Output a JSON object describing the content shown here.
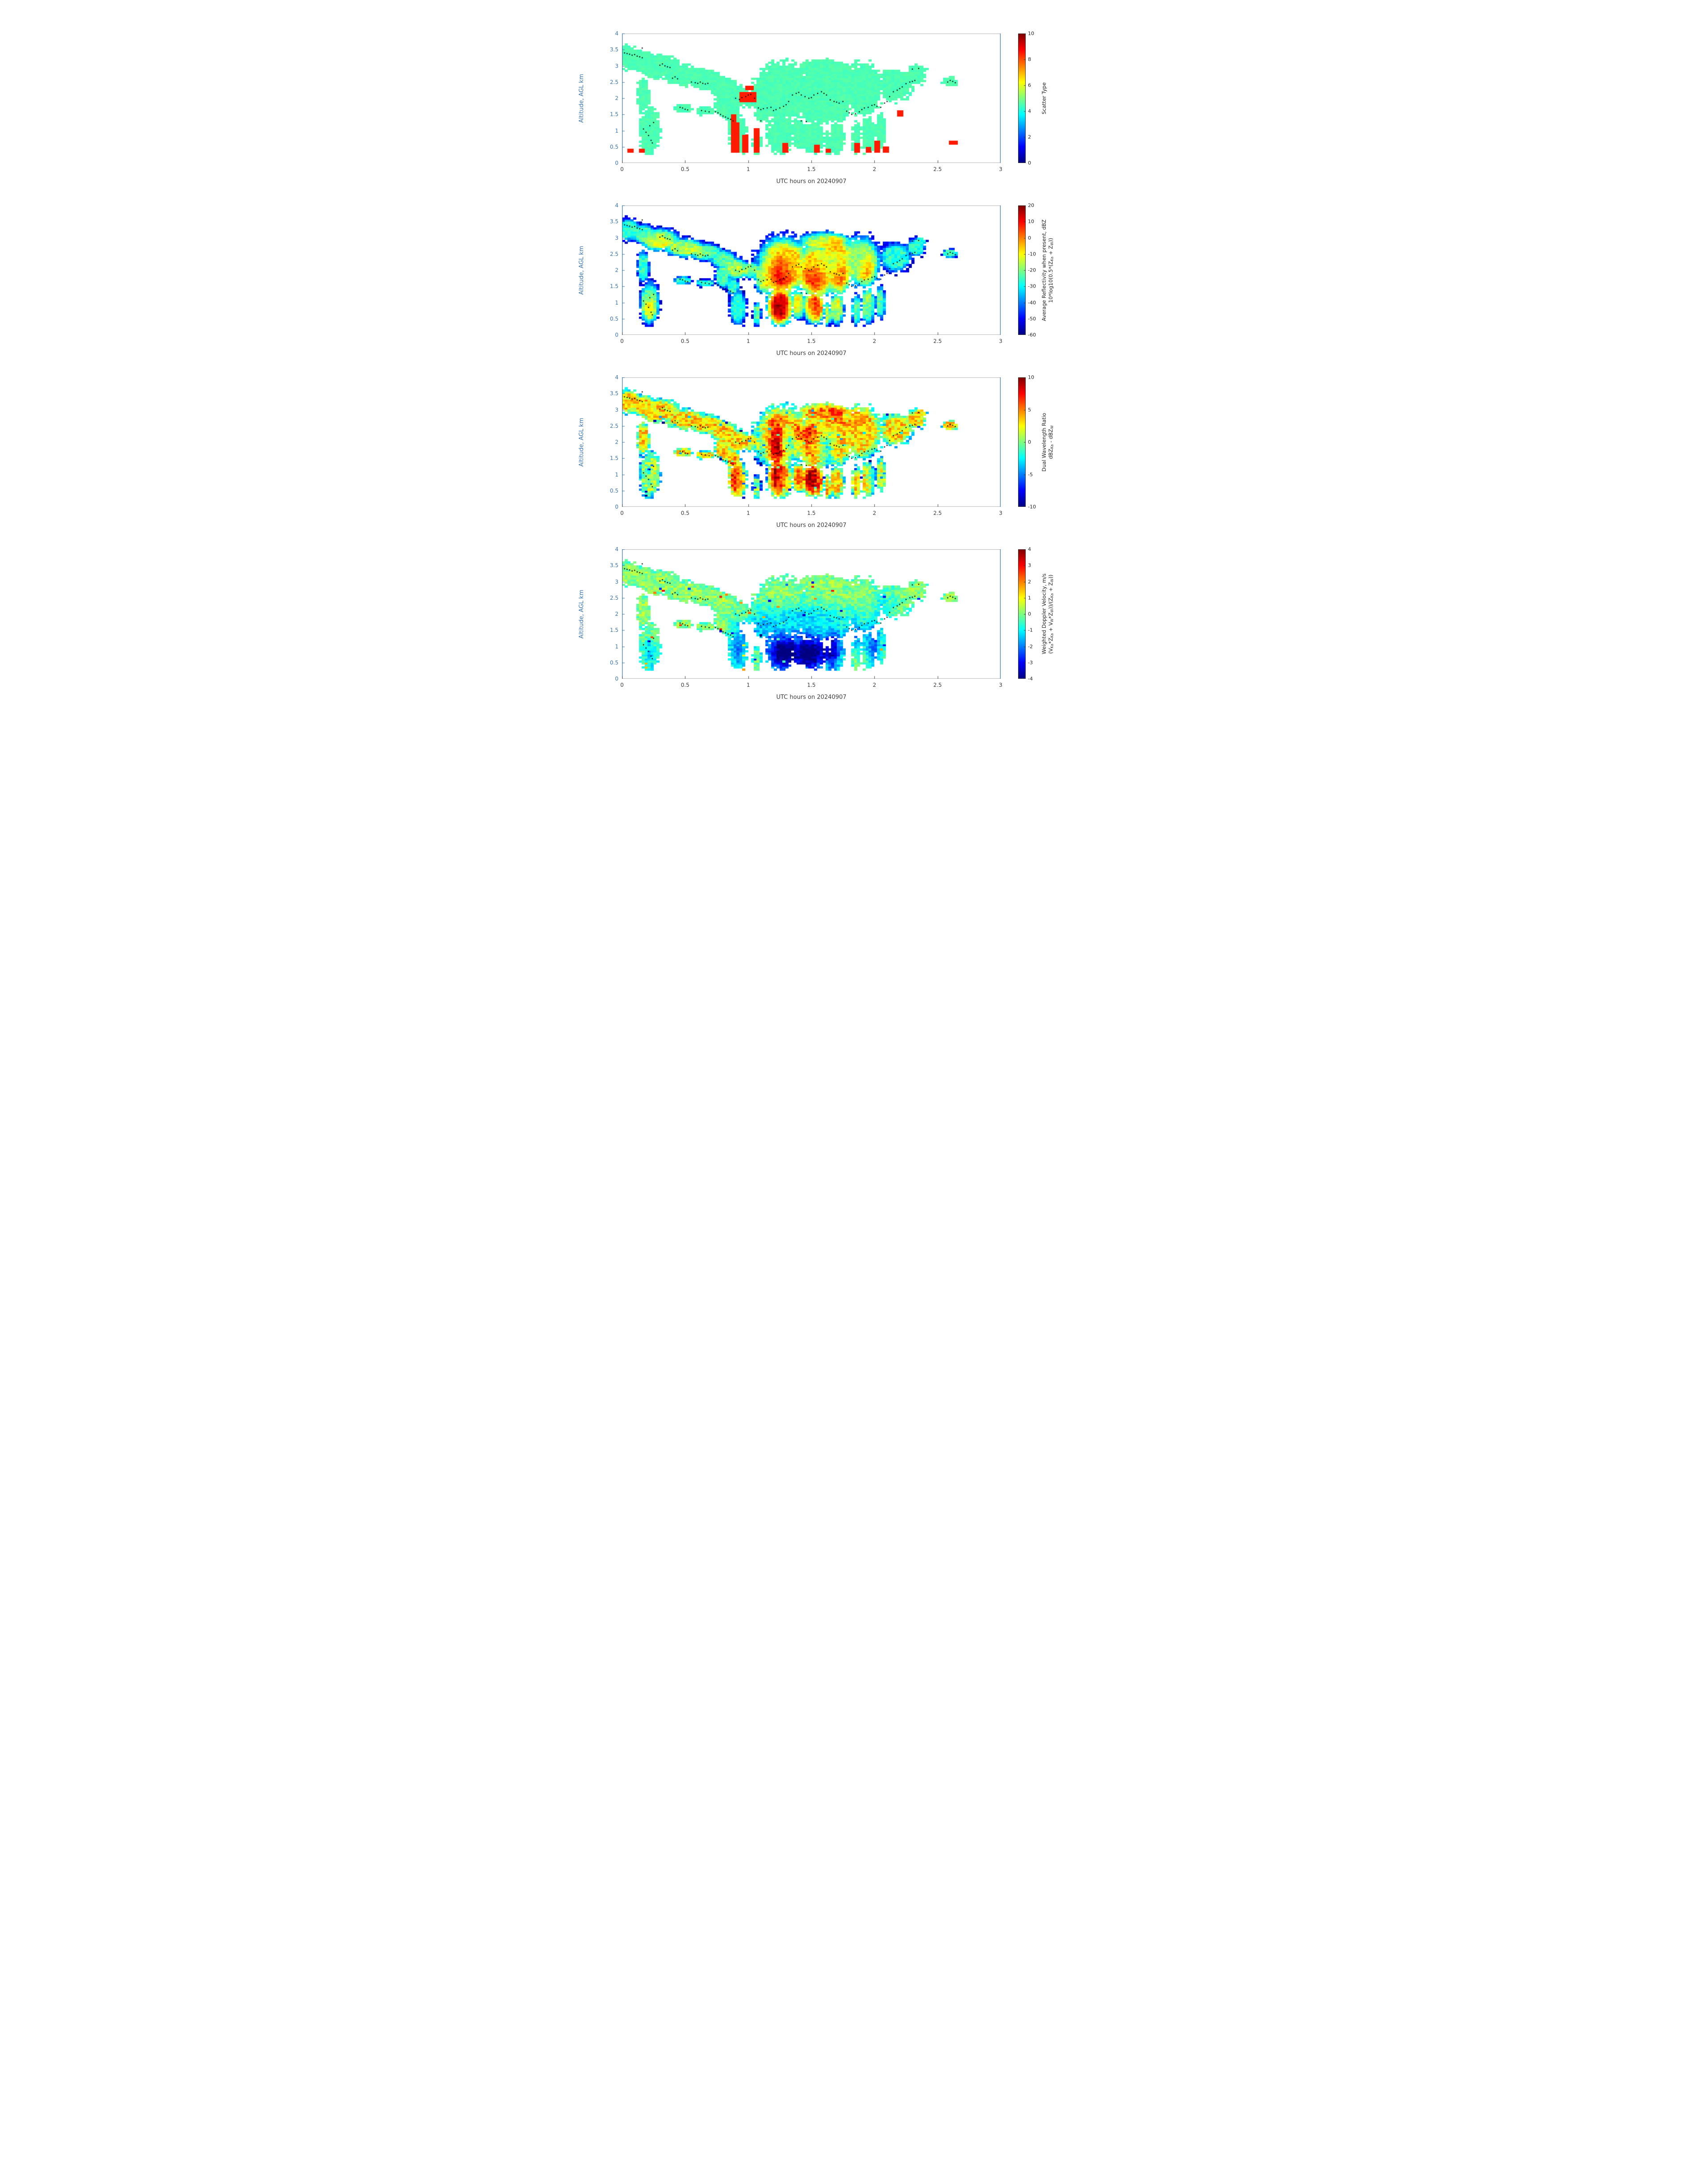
{
  "figure": {
    "xlabel": "UTC hours on 20240907",
    "ylabel": "Altitude, AGL km"
  },
  "grid": {
    "nx": 132,
    "ny": 64,
    "xmin": 0,
    "xmax": 3,
    "ymin": 0,
    "ymax": 4,
    "cloud_base_km": 0.28
  },
  "mask_blobs_format": "cx_hours, cy_km, rx_hours, ry_km",
  "mask_blobs": [
    [
      0.05,
      3.25,
      0.11,
      0.38
    ],
    [
      0.17,
      3.12,
      0.12,
      0.32
    ],
    [
      0.3,
      2.95,
      0.18,
      0.38
    ],
    [
      0.5,
      2.7,
      0.18,
      0.32
    ],
    [
      0.67,
      2.55,
      0.15,
      0.3
    ],
    [
      0.8,
      2.35,
      0.12,
      0.32
    ],
    [
      0.9,
      2.05,
      0.1,
      0.38
    ],
    [
      1.02,
      2.0,
      0.1,
      0.28
    ],
    [
      0.17,
      2.1,
      0.055,
      0.55
    ],
    [
      0.22,
      1.0,
      0.085,
      0.75
    ],
    [
      0.48,
      1.68,
      0.085,
      0.14
    ],
    [
      0.66,
      1.6,
      0.085,
      0.13
    ],
    [
      0.8,
      1.8,
      0.07,
      0.4
    ],
    [
      0.88,
      1.5,
      0.06,
      0.3
    ],
    [
      0.92,
      0.85,
      0.075,
      0.6
    ],
    [
      1.07,
      0.65,
      0.035,
      0.4
    ],
    [
      1.12,
      1.8,
      0.08,
      0.55
    ],
    [
      1.27,
      2.2,
      0.23,
      0.95
    ],
    [
      1.25,
      0.85,
      0.11,
      0.6
    ],
    [
      1.4,
      0.9,
      0.06,
      0.45
    ],
    [
      1.55,
      2.0,
      0.18,
      0.85
    ],
    [
      1.52,
      0.8,
      0.09,
      0.55
    ],
    [
      1.6,
      2.9,
      0.22,
      0.3
    ],
    [
      1.63,
      0.6,
      0.03,
      0.35
    ],
    [
      1.7,
      2.2,
      0.15,
      1.0
    ],
    [
      1.7,
      0.75,
      0.06,
      0.5
    ],
    [
      1.86,
      0.75,
      0.04,
      0.5
    ],
    [
      1.9,
      2.3,
      0.17,
      0.85
    ],
    [
      1.95,
      0.85,
      0.06,
      0.6
    ],
    [
      2.05,
      1.0,
      0.045,
      0.55
    ],
    [
      2.17,
      2.4,
      0.14,
      0.5
    ],
    [
      2.33,
      2.7,
      0.08,
      0.32
    ],
    [
      2.37,
      2.9,
      0.05,
      0.12
    ],
    [
      2.6,
      2.52,
      0.075,
      0.15
    ]
  ],
  "track_dots_format": "x_hours, y_km (black dotted level track, same in all panels)",
  "track_dots": [
    [
      0.0,
      3.42
    ],
    [
      0.02,
      3.4
    ],
    [
      0.04,
      3.38
    ],
    [
      0.06,
      3.36
    ],
    [
      0.08,
      3.33
    ],
    [
      0.1,
      3.35
    ],
    [
      0.12,
      3.3
    ],
    [
      0.14,
      3.28
    ],
    [
      0.16,
      3.25
    ],
    [
      0.16,
      3.55
    ],
    [
      0.3,
      3.02
    ],
    [
      0.32,
      3.06
    ],
    [
      0.34,
      3.0
    ],
    [
      0.36,
      2.97
    ],
    [
      0.38,
      2.95
    ],
    [
      0.4,
      2.62
    ],
    [
      0.42,
      2.66
    ],
    [
      0.44,
      2.6
    ],
    [
      0.46,
      1.72
    ],
    [
      0.48,
      1.7
    ],
    [
      0.5,
      1.66
    ],
    [
      0.52,
      1.64
    ],
    [
      0.55,
      2.5
    ],
    [
      0.58,
      2.48
    ],
    [
      0.6,
      2.46
    ],
    [
      0.62,
      2.5
    ],
    [
      0.64,
      2.46
    ],
    [
      0.66,
      2.44
    ],
    [
      0.68,
      2.46
    ],
    [
      0.63,
      1.62
    ],
    [
      0.66,
      1.6
    ],
    [
      0.69,
      1.58
    ],
    [
      0.74,
      1.58
    ],
    [
      0.76,
      1.55
    ],
    [
      0.78,
      1.5
    ],
    [
      0.8,
      1.45
    ],
    [
      0.82,
      1.42
    ],
    [
      0.84,
      1.38
    ],
    [
      0.86,
      1.35
    ],
    [
      0.88,
      1.3
    ],
    [
      0.9,
      2.0
    ],
    [
      0.93,
      1.96
    ],
    [
      0.95,
      2.02
    ],
    [
      0.98,
      2.05
    ],
    [
      1.0,
      2.1
    ],
    [
      1.02,
      2.12
    ],
    [
      1.05,
      2.0
    ],
    [
      1.08,
      1.7
    ],
    [
      1.1,
      1.65
    ],
    [
      1.12,
      1.68
    ],
    [
      1.15,
      1.7
    ],
    [
      1.18,
      1.72
    ],
    [
      1.1,
      1.3
    ],
    [
      1.2,
      1.62
    ],
    [
      1.22,
      1.65
    ],
    [
      1.25,
      1.7
    ],
    [
      1.28,
      1.75
    ],
    [
      1.3,
      1.8
    ],
    [
      1.32,
      1.9
    ],
    [
      1.42,
      1.3
    ],
    [
      1.46,
      1.28
    ],
    [
      1.35,
      2.1
    ],
    [
      1.38,
      2.15
    ],
    [
      1.4,
      2.18
    ],
    [
      1.42,
      2.1
    ],
    [
      1.45,
      2.05
    ],
    [
      1.48,
      2.0
    ],
    [
      1.5,
      2.02
    ],
    [
      1.52,
      2.1
    ],
    [
      1.55,
      2.15
    ],
    [
      1.58,
      2.2
    ],
    [
      1.6,
      2.15
    ],
    [
      1.62,
      2.1
    ],
    [
      1.65,
      1.95
    ],
    [
      1.68,
      1.9
    ],
    [
      1.7,
      1.88
    ],
    [
      1.72,
      1.85
    ],
    [
      1.75,
      1.9
    ],
    [
      1.78,
      1.6
    ],
    [
      1.8,
      1.55
    ],
    [
      1.82,
      1.5
    ],
    [
      1.85,
      1.52
    ],
    [
      1.88,
      1.58
    ],
    [
      1.9,
      1.65
    ],
    [
      1.92,
      1.7
    ],
    [
      1.95,
      1.72
    ],
    [
      1.98,
      1.78
    ],
    [
      2.0,
      1.8
    ],
    [
      2.02,
      1.75
    ],
    [
      2.05,
      1.72
    ],
    [
      2.08,
      1.85
    ],
    [
      2.1,
      1.9
    ],
    [
      2.12,
      2.05
    ],
    [
      2.15,
      2.2
    ],
    [
      2.18,
      2.25
    ],
    [
      2.2,
      2.3
    ],
    [
      2.22,
      2.35
    ],
    [
      2.25,
      2.45
    ],
    [
      2.28,
      2.5
    ],
    [
      2.3,
      2.52
    ],
    [
      2.32,
      2.55
    ],
    [
      2.3,
      2.9
    ],
    [
      2.35,
      2.92
    ],
    [
      2.58,
      2.5
    ],
    [
      2.6,
      2.55
    ],
    [
      2.62,
      2.52
    ],
    [
      2.64,
      2.48
    ],
    [
      0.17,
      1.05
    ],
    [
      0.19,
      0.95
    ],
    [
      0.21,
      0.85
    ],
    [
      0.23,
      0.7
    ],
    [
      0.24,
      0.62
    ],
    [
      0.22,
      1.15
    ],
    [
      0.25,
      1.25
    ]
  ],
  "chart_data": [
    {
      "type": "heatmap",
      "xlabel": "UTC hours on 20240907",
      "ylabel": "Altitude, AGL km",
      "xlim": [
        0,
        3
      ],
      "ylim": [
        0,
        4
      ],
      "xticks": [
        0,
        0.5,
        1,
        1.5,
        2,
        2.5,
        3
      ],
      "yticks": [
        0,
        0.5,
        1,
        1.5,
        2,
        2.5,
        3,
        3.5,
        4
      ],
      "colorbar": {
        "label_lines": [
          "Scatter Type"
        ],
        "min": 0,
        "max": 10,
        "ticks": [
          0,
          2,
          4,
          6,
          8,
          10
        ],
        "colormap": "jet"
      },
      "field": {
        "base": 4.5,
        "edge_drop": 0,
        "noise": 0.15,
        "hotspots": [],
        "overlay_value": 8.5,
        "overlays_format": "x_hours, y_km, w_hours, h_km (scatter-type ~8 cells)",
        "overlays": [
          [
            0.05,
            0.3,
            0.022,
            0.09
          ],
          [
            0.145,
            0.3,
            0.022,
            0.13
          ],
          [
            0.875,
            0.3,
            0.02,
            1.18
          ],
          [
            0.91,
            0.3,
            0.016,
            0.92
          ],
          [
            0.965,
            0.3,
            0.016,
            0.56
          ],
          [
            1.065,
            0.3,
            0.02,
            0.72
          ],
          [
            0.95,
            1.88,
            0.1,
            0.27
          ],
          [
            1.0,
            2.25,
            0.025,
            0.12
          ],
          [
            1.295,
            0.3,
            0.02,
            0.28
          ],
          [
            1.545,
            0.3,
            0.02,
            0.22
          ],
          [
            1.62,
            0.3,
            0.016,
            0.13
          ],
          [
            1.845,
            0.3,
            0.02,
            0.3
          ],
          [
            1.95,
            0.3,
            0.02,
            0.18
          ],
          [
            2.02,
            0.3,
            0.02,
            0.36
          ],
          [
            2.075,
            0.3,
            0.016,
            0.2
          ],
          [
            2.19,
            1.48,
            0.025,
            0.12
          ],
          [
            2.615,
            0.6,
            0.02,
            0.08
          ]
        ]
      }
    },
    {
      "type": "heatmap",
      "xlabel": "UTC hours on 20240907",
      "ylabel": "Altitude, AGL km",
      "xlim": [
        0,
        3
      ],
      "ylim": [
        0,
        4
      ],
      "xticks": [
        0,
        0.5,
        1,
        1.5,
        2,
        2.5,
        3
      ],
      "yticks": [
        0,
        0.5,
        1,
        1.5,
        2,
        2.5,
        3,
        3.5,
        4
      ],
      "colorbar": {
        "label_lines": [
          "Average Reflectivity when present, dBZ",
          "10*log10(0.5*(Z_{Ka} + Z_{W}))"
        ],
        "min": -60,
        "max": 20,
        "ticks": [
          -60,
          -50,
          -40,
          -30,
          -20,
          -10,
          0,
          10,
          20
        ],
        "colormap": "jet"
      },
      "field": {
        "base": -27,
        "edge_drop": 26,
        "noise": 5,
        "hotspots_format": "cx, cy, rx, ry, amplitude_dBZ",
        "hotspots": [
          [
            1.25,
            1.7,
            0.13,
            1.0,
            36
          ],
          [
            1.25,
            0.7,
            0.1,
            0.5,
            30
          ],
          [
            1.52,
            1.7,
            0.14,
            0.7,
            32
          ],
          [
            1.55,
            0.8,
            0.08,
            0.5,
            26
          ],
          [
            1.75,
            1.6,
            0.08,
            0.9,
            26
          ],
          [
            1.95,
            1.8,
            0.08,
            0.8,
            24
          ],
          [
            0.3,
            2.85,
            0.14,
            0.3,
            16
          ],
          [
            0.55,
            2.6,
            0.15,
            0.25,
            12
          ],
          [
            0.9,
            2.05,
            0.12,
            0.3,
            12
          ],
          [
            0.22,
            0.8,
            0.06,
            0.4,
            18
          ],
          [
            1.7,
            2.8,
            0.15,
            0.35,
            18
          ],
          [
            1.45,
            2.6,
            0.15,
            0.3,
            14
          ]
        ]
      }
    },
    {
      "type": "heatmap",
      "xlabel": "UTC hours on 20240907",
      "ylabel": "Altitude, AGL km",
      "xlim": [
        0,
        3
      ],
      "ylim": [
        0,
        4
      ],
      "xticks": [
        0,
        0.5,
        1,
        1.5,
        2,
        2.5,
        3
      ],
      "yticks": [
        0,
        0.5,
        1,
        1.5,
        2,
        2.5,
        3,
        3.5,
        4
      ],
      "colorbar": {
        "label_lines": [
          "Dual Wavelength Ratio",
          "dBZ_{Ka} - dBZ_{W}"
        ],
        "min": -10,
        "max": 10,
        "ticks": [
          -10,
          -5,
          0,
          5,
          10
        ],
        "colormap": "jet"
      },
      "field": {
        "base": 3.2,
        "edge_drop": 6,
        "noise": 2.2,
        "speckle": {
          "prob": 0.02,
          "amp": -7,
          "both": false
        },
        "hotspots": [
          [
            1.22,
            1.5,
            0.07,
            1.1,
            7
          ],
          [
            1.5,
            0.9,
            0.09,
            0.6,
            6
          ],
          [
            1.45,
            2.3,
            0.12,
            0.4,
            4
          ],
          [
            1.75,
            2.9,
            0.22,
            0.35,
            3
          ],
          [
            0.88,
            0.9,
            0.06,
            0.6,
            4
          ],
          [
            1.1,
            1.2,
            0.07,
            0.8,
            -7
          ],
          [
            1.33,
            2.0,
            0.06,
            0.5,
            -5
          ],
          [
            1.62,
            1.8,
            0.06,
            0.6,
            -5
          ],
          [
            2.0,
            1.0,
            0.06,
            0.6,
            -4
          ],
          [
            0.2,
            1.0,
            0.07,
            0.6,
            -4
          ]
        ]
      }
    },
    {
      "type": "heatmap",
      "xlabel": "UTC hours on 20240907",
      "ylabel": "Altitude, AGL km",
      "xlim": [
        0,
        3
      ],
      "ylim": [
        0,
        4
      ],
      "xticks": [
        0,
        0.5,
        1,
        1.5,
        2,
        2.5,
        3
      ],
      "yticks": [
        0,
        0.5,
        1,
        1.5,
        2,
        2.5,
        3,
        3.5,
        4
      ],
      "colorbar": {
        "label_lines": [
          "Weighted Doppler Velocity, m/s",
          "(V_{Ka}*Z_{Ka} + V_{W}*Z_{W}))/(Z_{Ka} + Z_{W}))"
        ],
        "min": -4,
        "max": 4,
        "ticks": [
          -4,
          -3,
          -2,
          -1,
          0,
          1,
          2,
          3,
          4
        ],
        "colormap": "jet"
      },
      "field": {
        "base": 0.15,
        "edge_drop": 0.5,
        "noise": 0.55,
        "speckle": {
          "prob": 0.015,
          "amp": 2.6,
          "both": true
        },
        "hotspots": [
          [
            1.27,
            0.8,
            0.12,
            0.55,
            -4.5
          ],
          [
            1.5,
            0.8,
            0.13,
            0.55,
            -4.5
          ],
          [
            1.68,
            0.9,
            0.07,
            0.6,
            -3
          ],
          [
            2.0,
            1.0,
            0.07,
            0.7,
            -2.2
          ],
          [
            0.92,
            0.9,
            0.07,
            0.7,
            -2.2
          ],
          [
            1.45,
            1.9,
            0.4,
            0.45,
            -1.3
          ],
          [
            1.1,
            1.5,
            0.1,
            0.5,
            -1.2
          ],
          [
            0.22,
            0.8,
            0.06,
            0.5,
            -1.5
          ],
          [
            1.85,
            1.3,
            0.08,
            0.6,
            -1.5
          ],
          [
            2.1,
            2.3,
            0.12,
            0.4,
            -0.8
          ]
        ]
      }
    }
  ],
  "colors": {
    "axis_blue": "#3b75af",
    "axis_dark": "#3c3c3c",
    "box_gray": "#b5b5b5",
    "cyan_scatter": "#4be0c8",
    "overlay_red": "#f03a1a"
  }
}
